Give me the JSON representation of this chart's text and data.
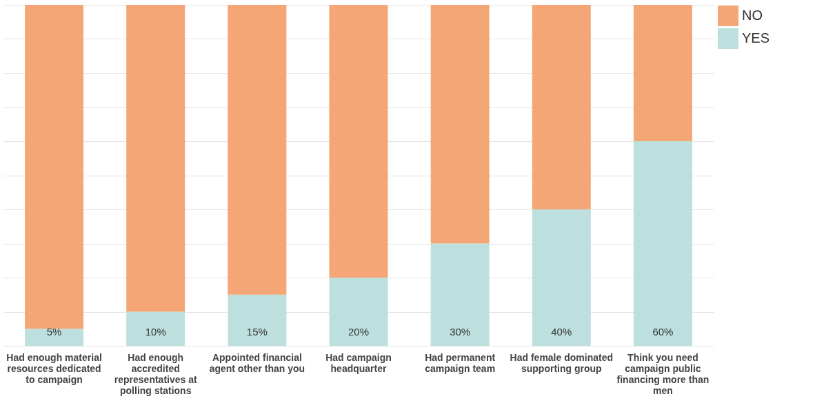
{
  "chart_data": {
    "type": "bar",
    "stacked": true,
    "grid": "y",
    "legend": "right",
    "tick_labels": "x",
    "categories": [
      "Had  enough material resources dedicated to campaign",
      "Had enough accredited representatives at polling stations",
      "Appointed financial agent other than you",
      "Had campaign headquarter",
      "Had  permanent campaign team",
      "Had female dominated supporting group",
      "Think you need campaign public financing more than men"
    ],
    "ylim": [
      0,
      100
    ],
    "yticks": [
      {
        "value": 0,
        "label": null
      },
      {
        "value": 10,
        "label": null
      },
      {
        "value": 20,
        "label": null
      },
      {
        "value": 30,
        "label": null
      },
      {
        "value": 40,
        "label": null
      },
      {
        "value": 50,
        "label": null
      },
      {
        "value": 60,
        "label": null
      },
      {
        "value": 70,
        "label": null
      },
      {
        "value": 80,
        "label": null
      },
      {
        "value": 90,
        "label": null
      },
      {
        "value": 100,
        "label": null
      }
    ],
    "series": [
      {
        "name": "YES",
        "color": "#bde0df",
        "values": [
          5,
          10,
          15,
          20,
          30,
          40,
          60
        ],
        "value_labels": [
          "5%",
          "10%",
          "15%",
          "20%",
          "30%",
          "40%",
          "60%"
        ]
      },
      {
        "name": "NO",
        "color": "#f4a677",
        "values": [
          95,
          90,
          85,
          80,
          70,
          60,
          40
        ]
      }
    ]
  }
}
